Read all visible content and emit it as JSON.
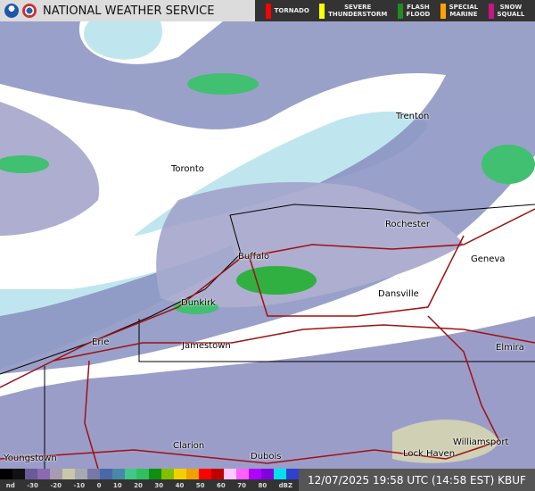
{
  "header": {
    "title": "NATIONAL WEATHER SERVICE",
    "warnings": [
      {
        "label": "TORNADO",
        "color": "#ff0000"
      },
      {
        "label": "SEVERE\nTHUNDERSTORM",
        "color": "#ffff00"
      },
      {
        "label": "FLASH\nFLOOD",
        "color": "#228b22"
      },
      {
        "label": "SPECIAL\nMARINE",
        "color": "#ffa500"
      },
      {
        "label": "SNOW\nSQUALL",
        "color": "#c71585"
      }
    ]
  },
  "map": {
    "cities": [
      "Trenton",
      "Toronto",
      "Rochester",
      "Buffalo",
      "Geneva",
      "Dansville",
      "Dunkirk",
      "Jamestown",
      "Erie",
      "Elmira",
      "Williamsport",
      "Clarion",
      "Dubois",
      "Lock Haven",
      "Youngstown"
    ]
  },
  "legend": {
    "labels": [
      "nd",
      "-30",
      "-20",
      "-10",
      "0",
      "10",
      "20",
      "30",
      "40",
      "50",
      "60",
      "70",
      "80",
      "dBZ"
    ],
    "colors": [
      "#000000",
      "#111111",
      "#6a5a9a",
      "#8a6ab0",
      "#a89ab0",
      "#c8c8a8",
      "#a8a8b0",
      "#7878a8",
      "#4868a8",
      "#4888a8",
      "#40c888",
      "#30c060",
      "#109010",
      "#80c000",
      "#f0d000",
      "#f0a000",
      "#ff0000",
      "#c00000",
      "#ffc8ff",
      "#ff60ff",
      "#b000ff",
      "#8000e0",
      "#00e0f0",
      "#3040d0"
    ],
    "timestamp": "12/07/2025 19:58 UTC (14:58 EST)",
    "station": "KBUF"
  }
}
